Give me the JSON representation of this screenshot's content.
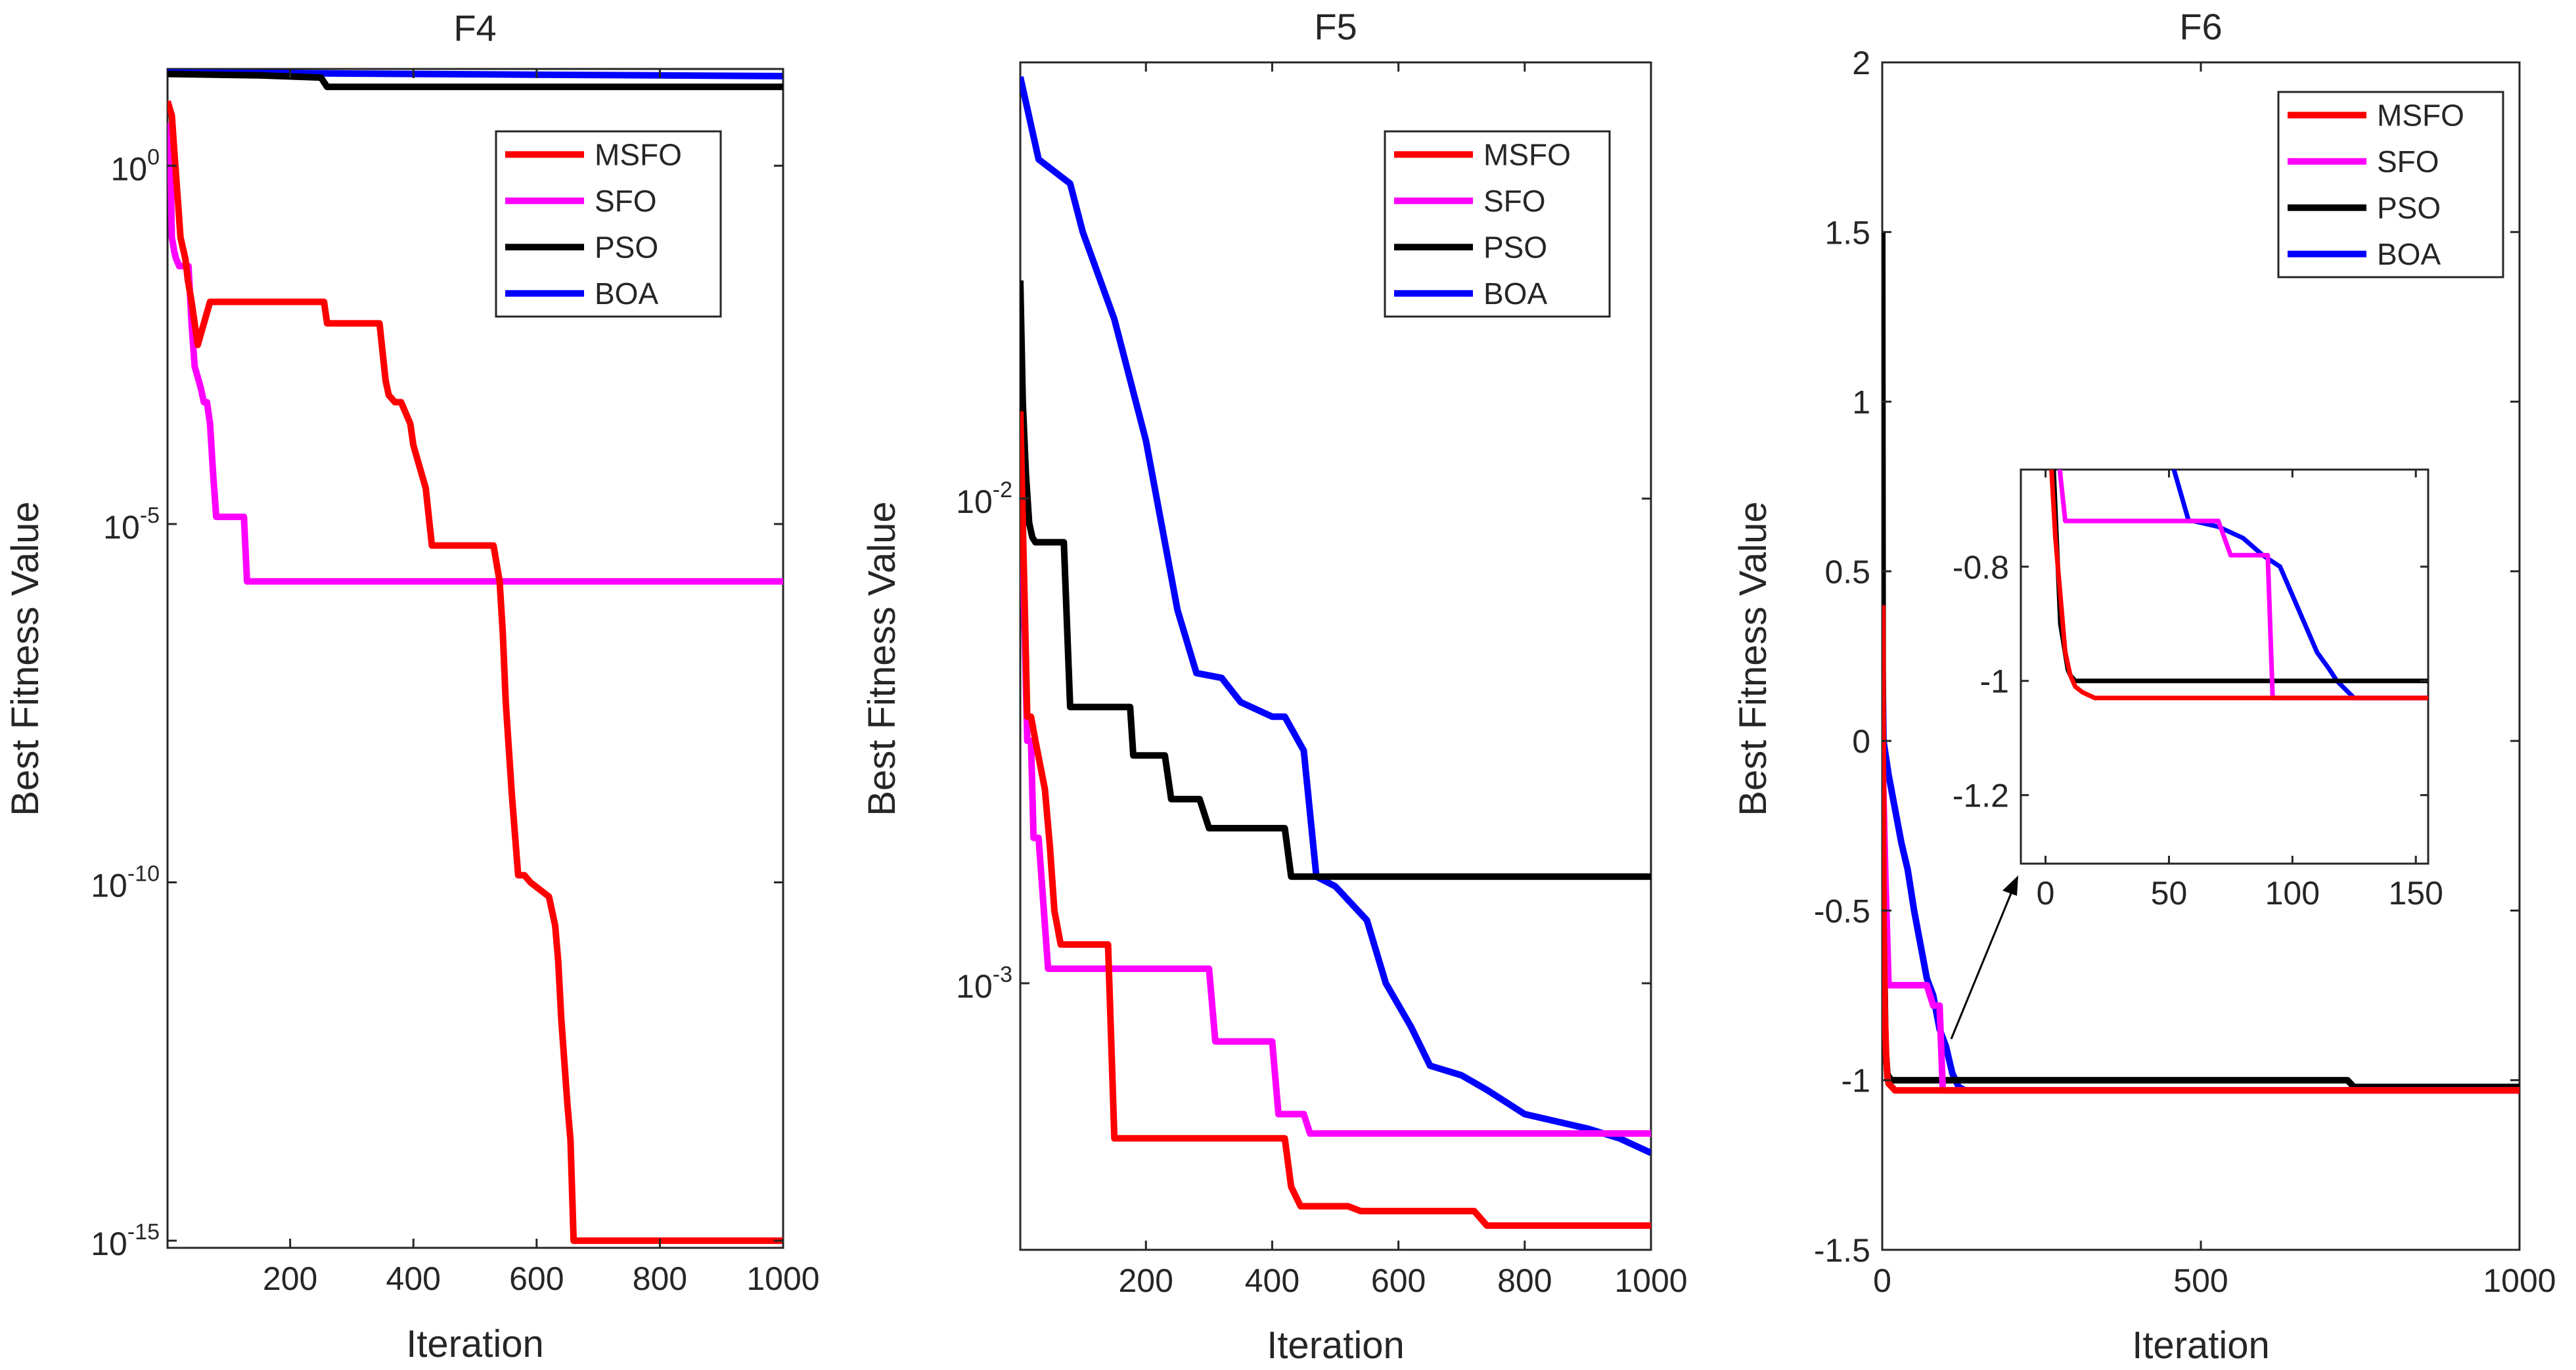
{
  "colors": {
    "MSFO": "#ff0000",
    "SFO": "#ff00ff",
    "PSO": "#000000",
    "BOA": "#0000ff",
    "axis": "#262626"
  },
  "chart_data": [
    {
      "type": "line",
      "title": "F4",
      "xlabel": "Iteration",
      "ylabel": "Best Fitness Value",
      "yscale": "log",
      "xlim": [
        1,
        1000
      ],
      "ylim_log10": [
        -15.1,
        1.35
      ],
      "xticks": [
        200,
        400,
        600,
        800,
        1000
      ],
      "xtick_labels": [
        "200",
        "400",
        "600",
        "800",
        "1000"
      ],
      "yticks": [
        {
          "base": "10",
          "exp": "0",
          "value_log10": 0
        },
        {
          "base": "10",
          "exp": "-5",
          "value_log10": -5
        },
        {
          "base": "10",
          "exp": "-10",
          "value_log10": -10
        },
        {
          "base": "10",
          "exp": "-15",
          "value_log10": -15
        }
      ],
      "legend": [
        "MSFO",
        "SFO",
        "PSO",
        "BOA"
      ],
      "legend_position": "top-right",
      "series": [
        {
          "name": "MSFO",
          "x": [
            1,
            8,
            12,
            18,
            22,
            30,
            34,
            40,
            45,
            50,
            70,
            255,
            260,
            345,
            350,
            355,
            360,
            370,
            380,
            395,
            400,
            410,
            420,
            430,
            440,
            530,
            540,
            545,
            550,
            560,
            570,
            575,
            580,
            590,
            620,
            630,
            635,
            640,
            645,
            650,
            655,
            660,
            670,
            680,
            1000
          ],
          "y_log10": [
            0.9,
            0.7,
            0.2,
            -0.5,
            -1.0,
            -1.3,
            -1.6,
            -1.9,
            -2.2,
            -2.5,
            -1.9,
            -1.9,
            -2.2,
            -2.2,
            -2.6,
            -3.0,
            -3.2,
            -3.3,
            -3.3,
            -3.6,
            -3.9,
            -4.2,
            -4.5,
            -5.3,
            -5.3,
            -5.3,
            -5.8,
            -6.5,
            -7.5,
            -8.8,
            -9.9,
            -9.9,
            -9.9,
            -10.0,
            -10.2,
            -10.6,
            -11.1,
            -11.9,
            -12.5,
            -13.1,
            -13.6,
            -15.0,
            -15.0,
            -15.0,
            -15.0
          ]
        },
        {
          "name": "SFO",
          "x": [
            1,
            5,
            8,
            12,
            15,
            20,
            25,
            35,
            40,
            45,
            55,
            60,
            65,
            70,
            75,
            80,
            90,
            100,
            125,
            130,
            1000
          ],
          "y_log10": [
            0.6,
            0.4,
            -1.0,
            -1.2,
            -1.3,
            -1.4,
            -1.4,
            -1.4,
            -2.2,
            -2.8,
            -3.1,
            -3.3,
            -3.3,
            -3.6,
            -4.3,
            -4.9,
            -4.9,
            -4.9,
            -4.9,
            -5.8,
            -5.8
          ]
        },
        {
          "name": "PSO",
          "x": [
            1,
            150,
            250,
            260,
            600,
            610,
            1000
          ],
          "y_log10": [
            1.28,
            1.26,
            1.23,
            1.1,
            1.1,
            1.1,
            1.1
          ]
        },
        {
          "name": "BOA",
          "x": [
            1,
            200,
            400,
            600,
            800,
            1000
          ],
          "y_log10": [
            1.3,
            1.29,
            1.28,
            1.27,
            1.26,
            1.25
          ]
        }
      ]
    },
    {
      "type": "line",
      "title": "F5",
      "xlabel": "Iteration",
      "ylabel": "Best Fitness Value",
      "yscale": "log",
      "xlim": [
        1,
        1000
      ],
      "ylim_log10": [
        -3.55,
        -1.1
      ],
      "xticks": [
        200,
        400,
        600,
        800,
        1000
      ],
      "xtick_labels": [
        "200",
        "400",
        "600",
        "800",
        "1000"
      ],
      "yticks": [
        {
          "base": "10",
          "exp": "-2",
          "value_log10": -2
        },
        {
          "base": "10",
          "exp": "-3",
          "value_log10": -3
        }
      ],
      "legend": [
        "MSFO",
        "SFO",
        "PSO",
        "BOA"
      ],
      "legend_position": "top-right",
      "series": [
        {
          "name": "MSFO",
          "x": [
            1,
            12,
            18,
            25,
            40,
            48,
            55,
            65,
            75,
            140,
            150,
            420,
            430,
            445,
            460,
            520,
            540,
            720,
            740,
            800,
            1000
          ],
          "y_log10": [
            -1.82,
            -2.45,
            -2.45,
            -2.5,
            -2.6,
            -2.72,
            -2.85,
            -2.92,
            -2.92,
            -2.92,
            -3.32,
            -3.32,
            -3.42,
            -3.46,
            -3.46,
            -3.46,
            -3.47,
            -3.47,
            -3.5,
            -3.5,
            -3.5
          ]
        },
        {
          "name": "SFO",
          "x": [
            1,
            12,
            18,
            22,
            30,
            45,
            55,
            300,
            310,
            400,
            410,
            450,
            460,
            1000
          ],
          "y_log10": [
            -1.88,
            -2.5,
            -2.5,
            -2.7,
            -2.7,
            -2.97,
            -2.97,
            -2.97,
            -3.12,
            -3.12,
            -3.27,
            -3.27,
            -3.31,
            -3.31
          ]
        },
        {
          "name": "PSO",
          "x": [
            1,
            5,
            10,
            15,
            20,
            25,
            70,
            80,
            175,
            180,
            230,
            240,
            285,
            300,
            420,
            430,
            1000
          ],
          "y_log10": [
            -1.55,
            -1.8,
            -1.95,
            -2.05,
            -2.08,
            -2.09,
            -2.09,
            -2.43,
            -2.43,
            -2.53,
            -2.53,
            -2.62,
            -2.62,
            -2.68,
            -2.68,
            -2.78,
            -2.78
          ]
        },
        {
          "name": "BOA",
          "x": [
            1,
            30,
            80,
            100,
            150,
            200,
            250,
            280,
            320,
            350,
            400,
            420,
            450,
            470,
            500,
            550,
            580,
            620,
            650,
            700,
            740,
            800,
            900,
            950,
            1000
          ],
          "y_log10": [
            -1.13,
            -1.3,
            -1.35,
            -1.45,
            -1.63,
            -1.88,
            -2.23,
            -2.36,
            -2.37,
            -2.42,
            -2.45,
            -2.45,
            -2.52,
            -2.78,
            -2.8,
            -2.87,
            -3.0,
            -3.09,
            -3.17,
            -3.19,
            -3.22,
            -3.27,
            -3.3,
            -3.32,
            -3.35
          ]
        }
      ]
    },
    {
      "type": "line",
      "title": "F6",
      "xlabel": "Iteration",
      "ylabel": "Best Fitness Value",
      "yscale": "linear",
      "xlim": [
        0,
        1000
      ],
      "ylim": [
        -1.5,
        2
      ],
      "xticks": [
        0,
        500,
        1000
      ],
      "xtick_labels": [
        "0",
        "500",
        "1000"
      ],
      "yticks": [
        -1.5,
        -1,
        -0.5,
        0,
        0.5,
        1,
        1.5,
        2
      ],
      "ytick_labels": [
        "-1.5",
        "-1",
        "-0.5",
        "0",
        "0.5",
        "1",
        "1.5",
        "2"
      ],
      "legend": [
        "MSFO",
        "SFO",
        "PSO",
        "BOA"
      ],
      "legend_position": "top-right",
      "series": [
        {
          "name": "MSFO",
          "x": [
            0,
            2,
            4,
            6,
            8,
            10,
            15,
            20,
            50,
            100,
            200,
            1000
          ],
          "y": [
            0.4,
            -0.5,
            -0.8,
            -0.92,
            -0.99,
            -1.01,
            -1.02,
            -1.03,
            -1.03,
            -1.03,
            -1.03,
            -1.03
          ]
        },
        {
          "name": "SFO",
          "x": [
            0,
            5,
            10,
            15,
            20,
            50,
            70,
            80,
            90,
            95,
            130,
            1000
          ],
          "y": [
            0.0,
            -0.4,
            -0.72,
            -0.72,
            -0.72,
            -0.72,
            -0.72,
            -0.78,
            -0.78,
            -1.03,
            -1.03,
            -1.03
          ]
        },
        {
          "name": "PSO",
          "x": [
            0,
            1,
            5,
            8,
            10,
            15,
            730,
            740,
            1000
          ],
          "y": [
            1.5,
            -0.3,
            -0.9,
            -0.98,
            -0.99,
            -1.0,
            -1.0,
            -1.02,
            -1.02
          ]
        },
        {
          "name": "BOA",
          "x": [
            0,
            2,
            10,
            20,
            30,
            40,
            50,
            60,
            70,
            80,
            90,
            100,
            110,
            120,
            130,
            1000
          ],
          "y": [
            0.3,
            0.0,
            -0.1,
            -0.2,
            -0.3,
            -0.38,
            -0.5,
            -0.6,
            -0.7,
            -0.75,
            -0.85,
            -0.9,
            -0.98,
            -1.02,
            -1.03,
            -1.03
          ]
        }
      ],
      "inset": {
        "xlim": [
          -10,
          155
        ],
        "ylim": [
          -1.32,
          -0.63
        ],
        "xticks": [
          0,
          50,
          100,
          150
        ],
        "xtick_labels": [
          "0",
          "50",
          "100",
          "150"
        ],
        "yticks": [
          -0.8,
          -1,
          -1.2
        ],
        "ytick_labels": [
          "-0.8",
          "-1",
          "-1.2"
        ],
        "series": [
          {
            "name": "MSFO",
            "x": [
              0,
              2,
              4,
              6,
              8,
              10,
              12,
              15,
              20,
              25,
              155
            ],
            "y": [
              -0.5,
              -0.6,
              -0.75,
              -0.85,
              -0.95,
              -0.99,
              -1.01,
              -1.02,
              -1.03,
              -1.03,
              -1.03
            ]
          },
          {
            "name": "SFO",
            "x": [
              0,
              5,
              8,
              10,
              20,
              60,
              70,
              75,
              90,
              92,
              155
            ],
            "y": [
              -0.5,
              -0.6,
              -0.72,
              -0.72,
              -0.72,
              -0.72,
              -0.72,
              -0.78,
              -0.78,
              -1.03,
              -1.03
            ]
          },
          {
            "name": "PSO",
            "x": [
              0,
              3,
              6,
              9,
              10,
              12,
              155
            ],
            "y": [
              -0.55,
              -0.6,
              -0.9,
              -0.98,
              -0.99,
              -1.0,
              -1.0
            ]
          },
          {
            "name": "BOA",
            "x": [
              0,
              50,
              58,
              60,
              70,
              80,
              88,
              95,
              100,
              105,
              110,
              115,
              118,
              125,
              155
            ],
            "y": [
              -0.5,
              -0.6,
              -0.72,
              -0.72,
              -0.73,
              -0.75,
              -0.78,
              -0.8,
              -0.85,
              -0.9,
              -0.95,
              -0.98,
              -1.0,
              -1.03,
              -1.03
            ]
          }
        ]
      }
    }
  ]
}
